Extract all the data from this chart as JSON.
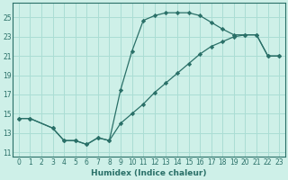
{
  "xlabel": "Humidex (Indice chaleur)",
  "ylabel": "",
  "bg_color": "#cef0e8",
  "line_color": "#2a7068",
  "grid_color": "#aaddd4",
  "xlim": [
    -0.5,
    23.5
  ],
  "ylim": [
    10.5,
    26.5
  ],
  "xticks": [
    0,
    1,
    2,
    3,
    4,
    5,
    6,
    7,
    8,
    9,
    10,
    11,
    12,
    13,
    14,
    15,
    16,
    17,
    18,
    19,
    20,
    21,
    22,
    23
  ],
  "yticks": [
    11,
    13,
    15,
    17,
    19,
    21,
    23,
    25
  ],
  "curve1_x": [
    0,
    1,
    3,
    4,
    5,
    6,
    7,
    8,
    9,
    10,
    11,
    12,
    13,
    14,
    15,
    16,
    17,
    18,
    19,
    20,
    21,
    22,
    23
  ],
  "curve1_y": [
    14.5,
    14.5,
    13.5,
    12.2,
    12.2,
    11.8,
    12.5,
    12.2,
    17.5,
    21.5,
    24.7,
    25.2,
    25.5,
    25.5,
    25.5,
    25.2,
    24.5,
    23.8,
    23.2,
    23.2,
    23.2,
    21.0,
    21.0
  ],
  "curve2_x": [
    0,
    1,
    3,
    4,
    5,
    6,
    7,
    8,
    9,
    10,
    11,
    12,
    13,
    14,
    15,
    16,
    17,
    18,
    19,
    20,
    21,
    22,
    23
  ],
  "curve2_y": [
    14.5,
    14.5,
    13.5,
    12.2,
    12.2,
    11.8,
    12.5,
    12.2,
    14.0,
    15.0,
    16.0,
    17.2,
    18.2,
    19.2,
    20.2,
    21.2,
    22.0,
    22.5,
    23.0,
    23.2,
    23.2,
    21.0,
    21.0
  ]
}
